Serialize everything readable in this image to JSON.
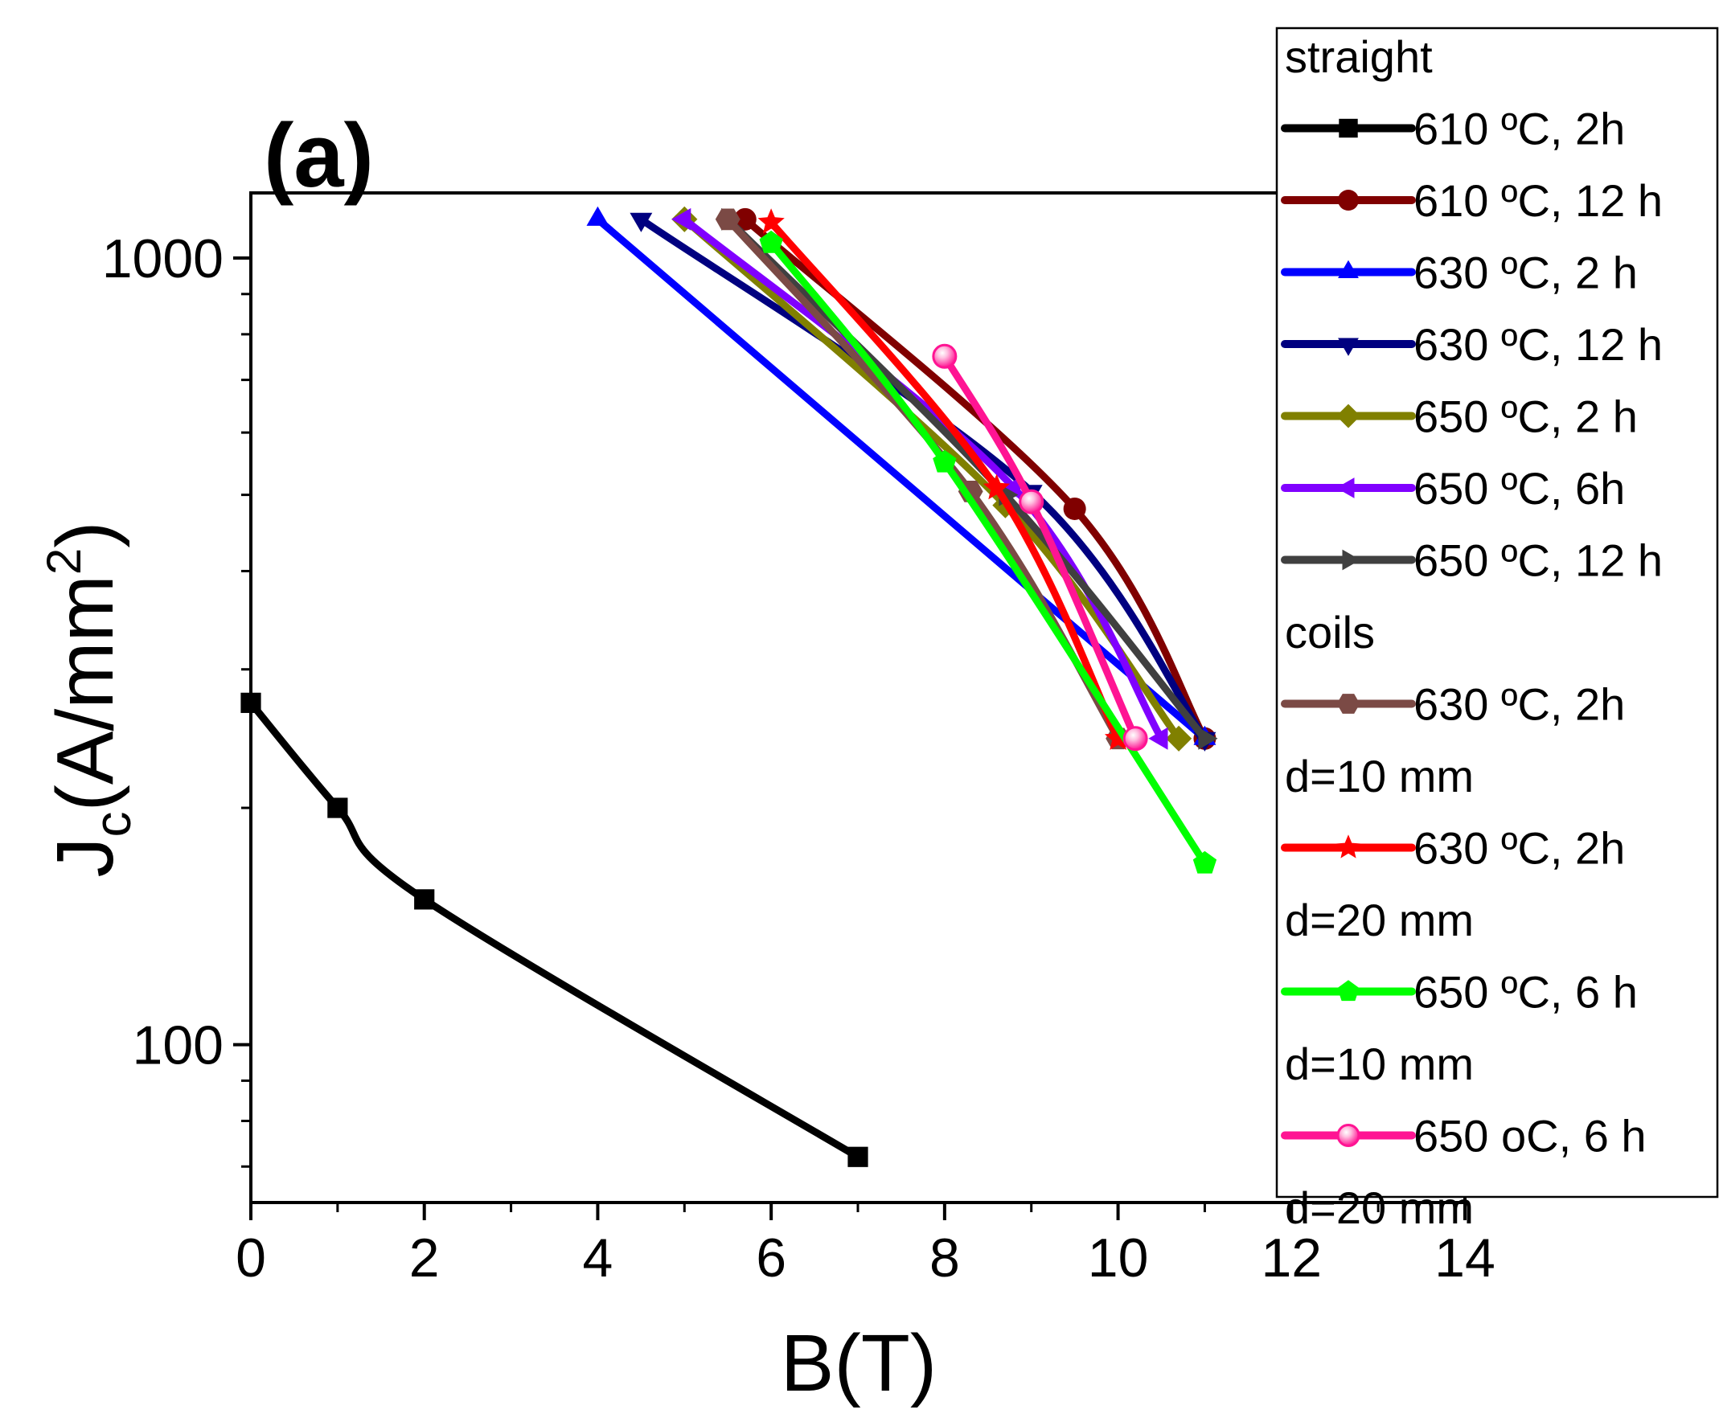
{
  "chart_data": {
    "type": "line",
    "panel_label": "(a)",
    "xlabel": "B(T)",
    "ylabel_main": "J",
    "ylabel_sub": "c",
    "ylabel_rest": "(A/mm",
    "ylabel_sup": "2",
    "ylabel_close": ")",
    "x_scale": "linear",
    "y_scale": "log",
    "xlim": [
      0,
      14
    ],
    "ylim": [
      63,
      1210
    ],
    "x_ticks": [
      0,
      2,
      4,
      6,
      8,
      10,
      12,
      14
    ],
    "x_tick_labels": [
      "0",
      "2",
      "4",
      "6",
      "8",
      "10",
      "12",
      "14"
    ],
    "y_ticks": [
      100,
      1000
    ],
    "y_tick_labels": [
      "100",
      "1000"
    ],
    "legend_position": "right",
    "legend_groups": [
      {
        "title": "straight",
        "series_indices": [
          0,
          1,
          2,
          3,
          4,
          5,
          6
        ]
      },
      {
        "title": "coils",
        "series_indices": [
          7,
          8,
          9,
          10
        ]
      }
    ],
    "series": [
      {
        "name": "610 ºC, 2h",
        "color": "#000000",
        "marker": "square",
        "x": [
          0,
          1,
          2,
          7
        ],
        "y": [
          272,
          200,
          153,
          72
        ]
      },
      {
        "name": "610 ºC, 12 h",
        "color": "#800000",
        "marker": "circle",
        "x": [
          5.7,
          9.5,
          11
        ],
        "y": [
          1120,
          480,
          245
        ]
      },
      {
        "name": "630 ºC, 2 h",
        "color": "#0000ff",
        "marker": "triangle-up",
        "x": [
          4,
          11
        ],
        "y": [
          1120,
          245
        ]
      },
      {
        "name": "630 ºC, 12 h",
        "color": "#000080",
        "marker": "triangle-down",
        "x": [
          4.5,
          9,
          11
        ],
        "y": [
          1120,
          505,
          245
        ]
      },
      {
        "name": "650 ºC, 2 h",
        "color": "#808000",
        "marker": "diamond",
        "x": [
          5,
          8.7,
          10.7
        ],
        "y": [
          1120,
          485,
          245
        ]
      },
      {
        "name": "650 ºC, 6h",
        "color": "#8000ff",
        "marker": "triangle-left",
        "x": [
          5,
          8.8,
          10.5
        ],
        "y": [
          1120,
          510,
          245
        ]
      },
      {
        "name": "650 ºC, 12 h",
        "color": "#404040",
        "marker": "triangle-right",
        "x": [
          5.5,
          8.7,
          11
        ],
        "y": [
          1120,
          500,
          245
        ]
      },
      {
        "name": "630 ºC, 2h",
        "sublabel": "d=10 mm",
        "color": "#7b4a45",
        "marker": "hexagon",
        "x": [
          5.5,
          8.3,
          10
        ],
        "y": [
          1120,
          505,
          245
        ]
      },
      {
        "name": "630 ºC, 2h",
        "sublabel": "d=20 mm",
        "color": "#ff0000",
        "marker": "star",
        "x": [
          6,
          8.6,
          10
        ],
        "y": [
          1110,
          510,
          245
        ]
      },
      {
        "name": "650 ºC, 6 h",
        "sublabel": "d=10 mm",
        "color": "#00ff00",
        "marker": "pentagon",
        "x": [
          6,
          8,
          11
        ],
        "y": [
          1045,
          550,
          170
        ]
      },
      {
        "name": "650 oC, 6 h",
        "sublabel": "d=20 mm",
        "color": "#ff1493",
        "marker": "sphere",
        "x": [
          8,
          9,
          10.2
        ],
        "y": [
          750,
          490,
          245
        ]
      }
    ]
  }
}
